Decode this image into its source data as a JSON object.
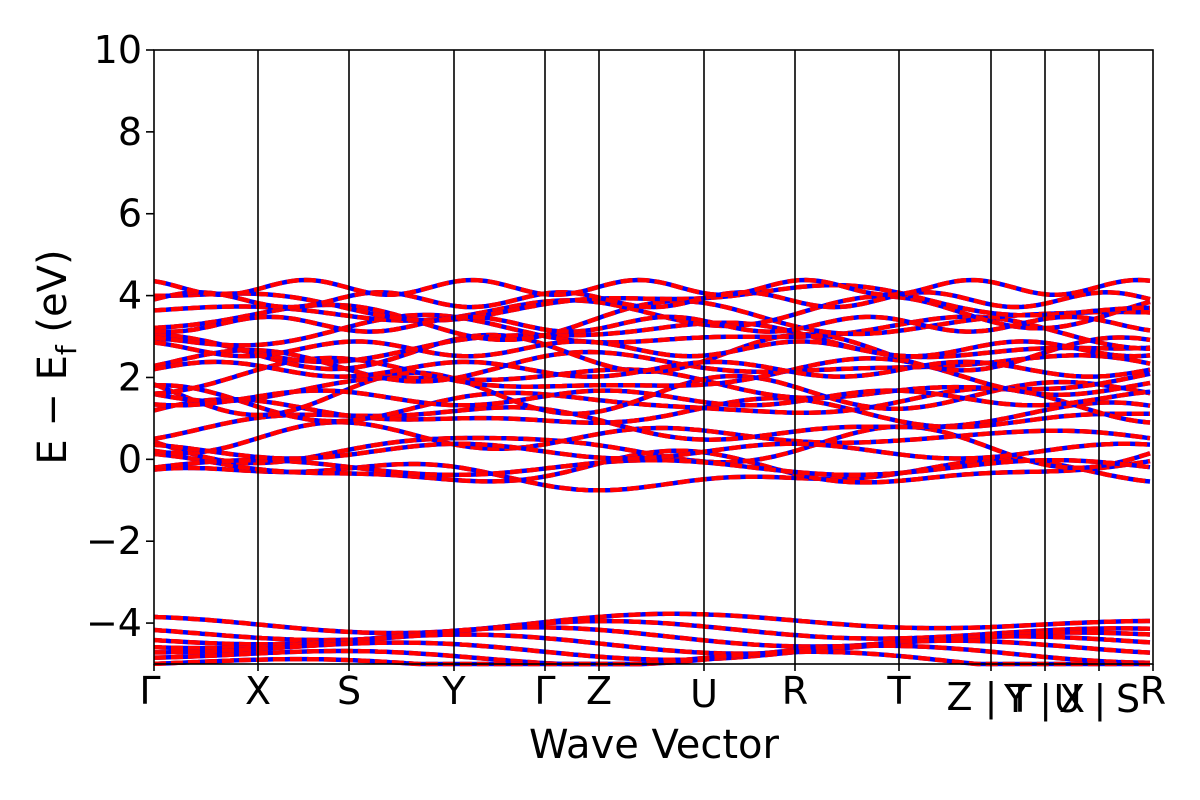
{
  "chart_data": {
    "type": "line",
    "title": "",
    "xlabel": "Wave Vector",
    "ylabel": "E − E_f (eV)",
    "ylabel_parts": {
      "main": "E − E",
      "sub": "f",
      "unit": " (eV)"
    },
    "ylim": [
      -5,
      10
    ],
    "yticks": [
      -4,
      -2,
      0,
      2,
      4,
      6,
      8,
      10
    ],
    "ytick_labels": [
      "−4",
      "−2",
      "0",
      "2",
      "4",
      "6",
      "8",
      "10"
    ],
    "grid": false,
    "legend": "none",
    "kpath": [
      "Γ",
      "X",
      "S",
      "Y",
      "Γ",
      "Z",
      "U",
      "R",
      "T",
      "Z|Y",
      "T|X",
      "U|S",
      "R"
    ],
    "kpath_labels_drawn": [
      "Γ",
      "X",
      "S",
      "Y",
      "Γ",
      "Z",
      "U",
      "R",
      "T",
      "Z |",
      "T",
      "Y |",
      "X",
      "U |",
      "S",
      "R"
    ],
    "colors": {
      "spin_up": "#0000ff",
      "spin_down": "#ff0000",
      "axes": "#000000"
    },
    "series": [
      {
        "name": "",
        "color": "#0000ff",
        "style": "solid"
      },
      {
        "name": "",
        "color": "#ff0000",
        "style": "dashed"
      }
    ],
    "valence_bands": [
      -4.0,
      -4.2,
      -4.35,
      -4.5,
      -4.65,
      -4.8,
      -4.95
    ],
    "conduction_bands_at_gamma": [
      -0.4,
      -0.25,
      0.3,
      0.55,
      0.9,
      1.1,
      1.35,
      1.6,
      1.85,
      2.0,
      2.3,
      2.6,
      2.9,
      3.1,
      3.4,
      3.6,
      3.85
    ]
  }
}
